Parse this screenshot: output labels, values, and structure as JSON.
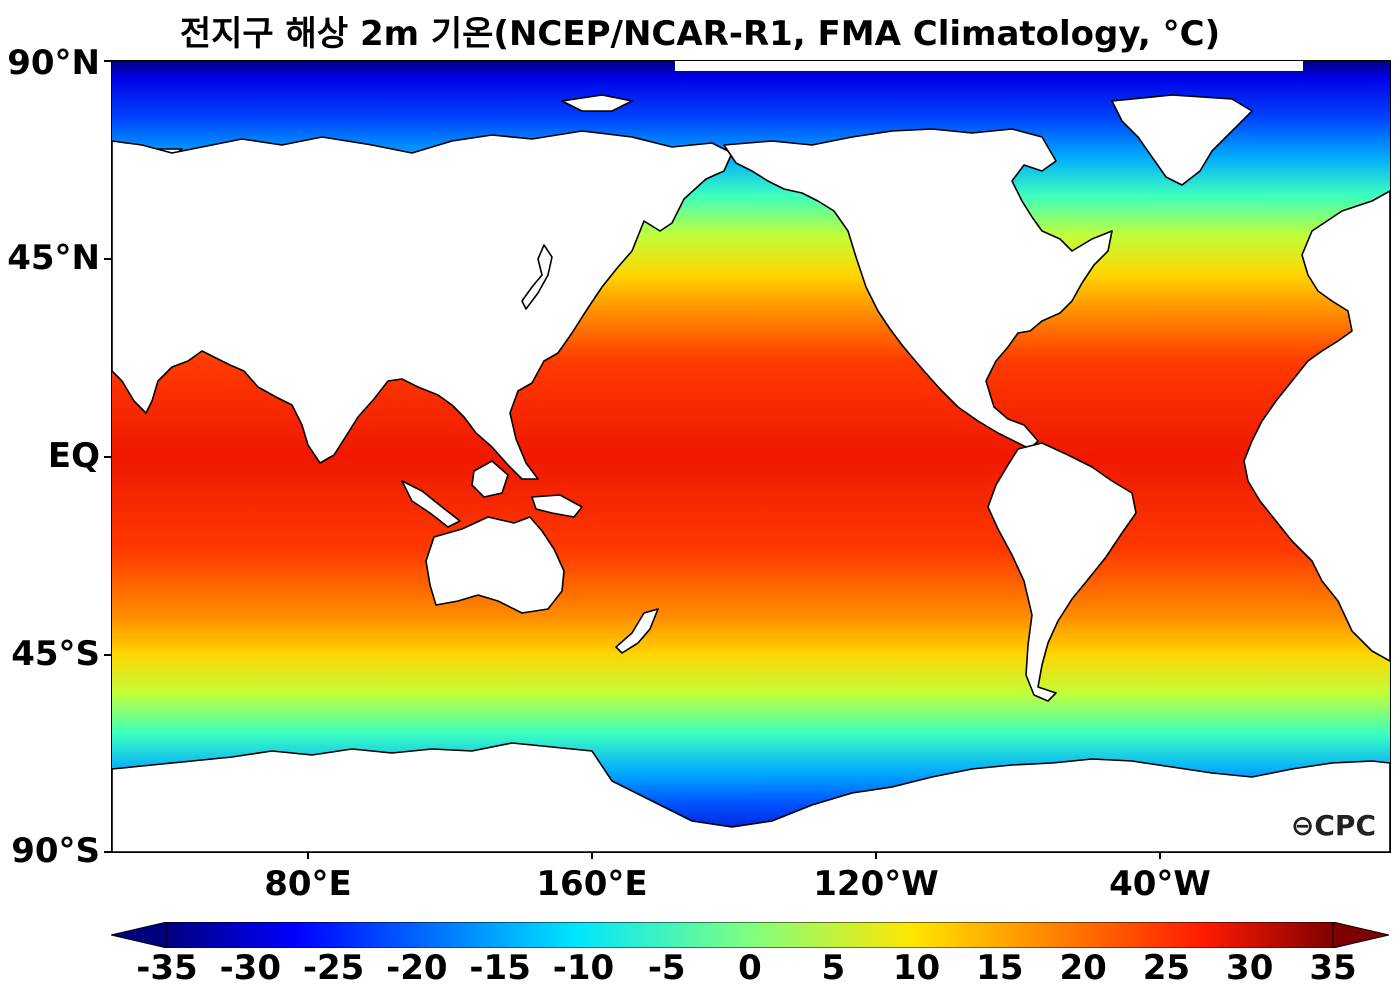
{
  "title": "전지구 해상 2m 기온(NCEP/NCAR-R1, FMA Climatology, °C)",
  "latitude_labels": [
    "90°N",
    "45°N",
    "EQ",
    "45°S",
    "90°S"
  ],
  "longitude_labels": [
    "80°E",
    "160°E",
    "120°W",
    "40°W"
  ],
  "colorbar": {
    "ticks": [
      "-35",
      "-30",
      "-25",
      "-20",
      "-15",
      "-10",
      "-5",
      "0",
      "5",
      "10",
      "15",
      "20",
      "25",
      "30",
      "35"
    ],
    "min": -35,
    "max": 35,
    "colormap": "jet",
    "extend": "both"
  },
  "logo": {
    "text": "CPC"
  }
}
